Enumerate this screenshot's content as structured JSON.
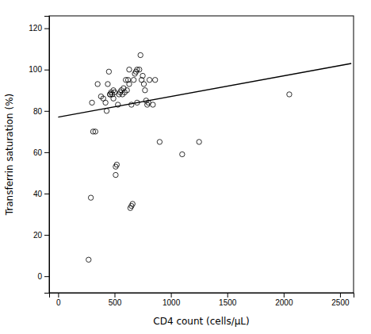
{
  "chart_data": {
    "type": "scatter",
    "xlabel": "CD4 count (cells/μL)",
    "ylabel": "Transferrin saturation (%)",
    "xlim": [
      -80,
      2620
    ],
    "ylim": [
      -8,
      126
    ],
    "xticks": [
      0,
      500,
      1000,
      1500,
      2000,
      2500
    ],
    "yticks": [
      0,
      20,
      40,
      60,
      80,
      100,
      120
    ],
    "series": [
      {
        "type": "scatter",
        "marker": "open-circle",
        "color": "#000000",
        "x": [
          270,
          290,
          310,
          330,
          350,
          380,
          400,
          420,
          430,
          440,
          450,
          460,
          460,
          470,
          480,
          490,
          500,
          510,
          510,
          520,
          530,
          540,
          550,
          560,
          570,
          580,
          590,
          600,
          610,
          620,
          630,
          640,
          650,
          660,
          670,
          680,
          690,
          700,
          720,
          730,
          740,
          750,
          760,
          770,
          780,
          790,
          800,
          810,
          840,
          860,
          900,
          1100,
          1250,
          2050,
          300,
          490,
          630,
          650,
          700
        ],
        "values": [
          8,
          38,
          70,
          70,
          93,
          87,
          86,
          84,
          80,
          93,
          99,
          88,
          88,
          89,
          88,
          86,
          89,
          49,
          53,
          54,
          83,
          88,
          89,
          90,
          88,
          91,
          89,
          95,
          90,
          95,
          100,
          33,
          34,
          35,
          95,
          98,
          99,
          100,
          100,
          107,
          95,
          97,
          93,
          90,
          85,
          83,
          84,
          95,
          83,
          95,
          65,
          59,
          65,
          88,
          84,
          90,
          93,
          83,
          84
        ]
      },
      {
        "type": "line",
        "color": "#000000",
        "line_style": "solid",
        "x": [
          0,
          2600
        ],
        "values": [
          77,
          103
        ]
      }
    ]
  }
}
